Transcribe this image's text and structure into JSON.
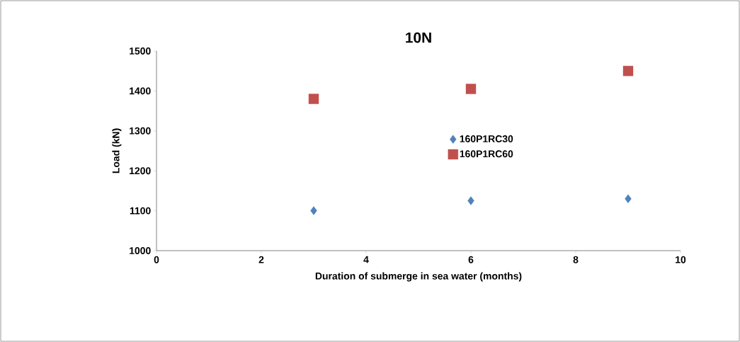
{
  "chart_data": {
    "type": "scatter",
    "title": "10N",
    "xlabel": "Duration of submerge in sea water (months)",
    "ylabel": "Load (kN)",
    "x": [
      3,
      6,
      9
    ],
    "series": [
      {
        "name": "160P1RC30",
        "color": "#4f81bd",
        "marker": "diamond",
        "values": [
          1100,
          1125,
          1130
        ]
      },
      {
        "name": "160P1RC60",
        "color": "#c0504d",
        "marker": "square",
        "values": [
          1380,
          1405,
          1450
        ]
      }
    ],
    "xlim": [
      0,
      10
    ],
    "xticks": [
      0,
      2,
      4,
      6,
      8,
      10
    ],
    "ylim": [
      1000,
      1500
    ],
    "yticks": [
      1000,
      1100,
      1200,
      1300,
      1400,
      1500
    ],
    "grid": false,
    "legend": "center"
  }
}
